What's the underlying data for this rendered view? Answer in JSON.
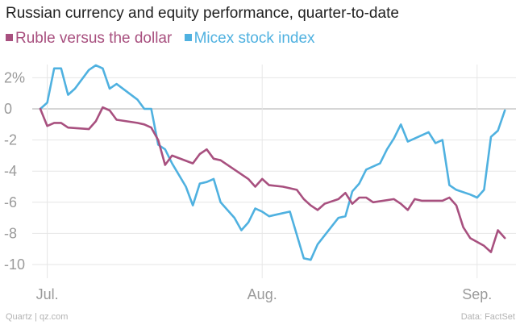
{
  "header": {
    "title": "Russian currency and equity performance, quarter-to-date"
  },
  "footer": {
    "source_left": "Quartz | qz.com",
    "source_right": "Data: FactSet"
  },
  "colors": {
    "ruble": "#a8507f",
    "micex": "#4fb1e0",
    "zero_line": "#bdbdbd",
    "grid": "#e6e6e6"
  },
  "chart_data": {
    "type": "line",
    "title": "Russian currency and equity performance, quarter-to-date",
    "xlabel": "",
    "ylabel": "",
    "ylim": [
      -11,
      3
    ],
    "y_ticks": [
      {
        "value": 2,
        "label": "2%"
      },
      {
        "value": 0,
        "label": "0"
      },
      {
        "value": -2,
        "label": "-2"
      },
      {
        "value": -4,
        "label": "-4"
      },
      {
        "value": -6,
        "label": "-6"
      },
      {
        "value": -8,
        "label": "-8"
      },
      {
        "value": -10,
        "label": "-10"
      }
    ],
    "x_ticks": [
      {
        "date": "2014-07-01",
        "label": "Jul."
      },
      {
        "date": "2014-08-01",
        "label": "Aug."
      },
      {
        "date": "2014-09-01",
        "label": "Sep."
      }
    ],
    "grid": true,
    "legend_position": "top-left",
    "series": [
      {
        "name": "Ruble versus the dollar",
        "color_key": "ruble",
        "points": [
          [
            "2014-06-30",
            0.0
          ],
          [
            "2014-07-01",
            -1.1
          ],
          [
            "2014-07-02",
            -0.9
          ],
          [
            "2014-07-03",
            -0.9
          ],
          [
            "2014-07-04",
            -1.2
          ],
          [
            "2014-07-07",
            -1.3
          ],
          [
            "2014-07-08",
            -0.8
          ],
          [
            "2014-07-09",
            0.1
          ],
          [
            "2014-07-10",
            -0.1
          ],
          [
            "2014-07-11",
            -0.7
          ],
          [
            "2014-07-14",
            -0.9
          ],
          [
            "2014-07-15",
            -1.0
          ],
          [
            "2014-07-16",
            -1.2
          ],
          [
            "2014-07-17",
            -2.0
          ],
          [
            "2014-07-18",
            -3.6
          ],
          [
            "2014-07-19",
            -3.0
          ],
          [
            "2014-07-22",
            -3.5
          ],
          [
            "2014-07-23",
            -2.9
          ],
          [
            "2014-07-24",
            -2.6
          ],
          [
            "2014-07-25",
            -3.2
          ],
          [
            "2014-07-26",
            -3.3
          ],
          [
            "2014-07-28",
            -3.9
          ],
          [
            "2014-07-30",
            -4.5
          ],
          [
            "2014-07-31",
            -5.0
          ],
          [
            "2014-08-01",
            -4.5
          ],
          [
            "2014-08-02",
            -4.9
          ],
          [
            "2014-08-04",
            -5.0
          ],
          [
            "2014-08-06",
            -5.2
          ],
          [
            "2014-08-07",
            -5.8
          ],
          [
            "2014-08-08",
            -6.2
          ],
          [
            "2014-08-09",
            -6.5
          ],
          [
            "2014-08-10",
            -6.1
          ],
          [
            "2014-08-12",
            -5.8
          ],
          [
            "2014-08-13",
            -5.4
          ],
          [
            "2014-08-14",
            -6.1
          ],
          [
            "2014-08-15",
            -5.7
          ],
          [
            "2014-08-16",
            -5.7
          ],
          [
            "2014-08-17",
            -6.0
          ],
          [
            "2014-08-20",
            -5.8
          ],
          [
            "2014-08-21",
            -6.1
          ],
          [
            "2014-08-22",
            -6.5
          ],
          [
            "2014-08-23",
            -5.8
          ],
          [
            "2014-08-24",
            -5.9
          ],
          [
            "2014-08-26",
            -5.9
          ],
          [
            "2014-08-27",
            -5.9
          ],
          [
            "2014-08-28",
            -5.7
          ],
          [
            "2014-08-29",
            -6.2
          ],
          [
            "2014-08-30",
            -7.6
          ],
          [
            "2014-08-31",
            -8.3
          ],
          [
            "2014-09-02",
            -8.8
          ],
          [
            "2014-09-03",
            -9.2
          ],
          [
            "2014-09-04",
            -7.8
          ],
          [
            "2014-09-05",
            -8.3
          ]
        ]
      },
      {
        "name": "Micex stock index",
        "color_key": "micex",
        "points": [
          [
            "2014-06-30",
            0.0
          ],
          [
            "2014-07-01",
            0.4
          ],
          [
            "2014-07-02",
            2.6
          ],
          [
            "2014-07-03",
            2.6
          ],
          [
            "2014-07-04",
            0.9
          ],
          [
            "2014-07-05",
            1.3
          ],
          [
            "2014-07-07",
            2.5
          ],
          [
            "2014-07-08",
            2.8
          ],
          [
            "2014-07-09",
            2.6
          ],
          [
            "2014-07-10",
            1.3
          ],
          [
            "2014-07-11",
            1.6
          ],
          [
            "2014-07-14",
            0.6
          ],
          [
            "2014-07-15",
            0.0
          ],
          [
            "2014-07-16",
            0.0
          ],
          [
            "2014-07-17",
            -2.3
          ],
          [
            "2014-07-18",
            -2.6
          ],
          [
            "2014-07-19",
            -3.5
          ],
          [
            "2014-07-21",
            -5.0
          ],
          [
            "2014-07-22",
            -6.2
          ],
          [
            "2014-07-23",
            -4.8
          ],
          [
            "2014-07-24",
            -4.7
          ],
          [
            "2014-07-25",
            -4.5
          ],
          [
            "2014-07-26",
            -6.0
          ],
          [
            "2014-07-28",
            -7.0
          ],
          [
            "2014-07-29",
            -7.8
          ],
          [
            "2014-07-30",
            -7.3
          ],
          [
            "2014-07-31",
            -6.4
          ],
          [
            "2014-08-01",
            -6.6
          ],
          [
            "2014-08-02",
            -6.9
          ],
          [
            "2014-08-03",
            -6.8
          ],
          [
            "2014-08-05",
            -6.6
          ],
          [
            "2014-08-07",
            -9.6
          ],
          [
            "2014-08-08",
            -9.7
          ],
          [
            "2014-08-09",
            -8.7
          ],
          [
            "2014-08-12",
            -7.0
          ],
          [
            "2014-08-13",
            -6.9
          ],
          [
            "2014-08-14",
            -5.3
          ],
          [
            "2014-08-15",
            -4.8
          ],
          [
            "2014-08-16",
            -3.9
          ],
          [
            "2014-08-18",
            -3.5
          ],
          [
            "2014-08-19",
            -2.6
          ],
          [
            "2014-08-20",
            -1.9
          ],
          [
            "2014-08-21",
            -1.0
          ],
          [
            "2014-08-22",
            -2.1
          ],
          [
            "2014-08-23",
            -1.9
          ],
          [
            "2014-08-25",
            -1.5
          ],
          [
            "2014-08-26",
            -2.2
          ],
          [
            "2014-08-27",
            -2.0
          ],
          [
            "2014-08-28",
            -4.9
          ],
          [
            "2014-08-29",
            -5.2
          ],
          [
            "2014-08-31",
            -5.5
          ],
          [
            "2014-09-01",
            -5.7
          ],
          [
            "2014-09-02",
            -5.2
          ],
          [
            "2014-09-03",
            -1.8
          ],
          [
            "2014-09-04",
            -1.4
          ],
          [
            "2014-09-05",
            -0.1
          ]
        ]
      }
    ]
  }
}
